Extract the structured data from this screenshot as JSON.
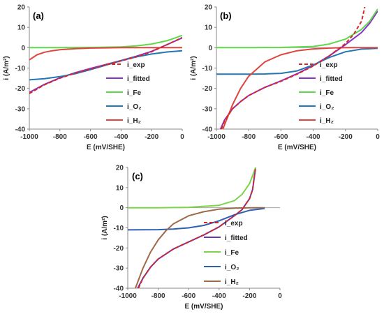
{
  "chart_data": [
    {
      "type": "line",
      "panel_label": "(a)",
      "xlabel": "E (mV/SHE)",
      "ylabel": "i (A/m²)",
      "xlim": [
        -1000,
        0
      ],
      "ylim": [
        -40,
        20
      ],
      "x_ticks": [
        -1000,
        -800,
        -600,
        -400,
        -200,
        0
      ],
      "y_ticks": [
        -40,
        -30,
        -20,
        -10,
        0,
        10,
        20
      ],
      "grid": false,
      "legend_position": "right",
      "series": [
        {
          "name": "i_exp",
          "color": "#d62728",
          "dashed": true,
          "x": [
            -1000,
            -900,
            -800,
            -700,
            -600,
            -500,
            -400,
            -300,
            -200,
            -100,
            0
          ],
          "y": [
            -22.5,
            -18.2,
            -15,
            -12.5,
            -10.5,
            -8.5,
            -6.5,
            -4.5,
            -2,
            1.5,
            5
          ]
        },
        {
          "name": "i_fitted",
          "color": "#8b2fc9",
          "dashed": false,
          "x": [
            -1000,
            -900,
            -800,
            -700,
            -600,
            -500,
            -400,
            -300,
            -200,
            -100,
            0
          ],
          "y": [
            -22,
            -18,
            -14.8,
            -12.3,
            -10.2,
            -8.3,
            -6.3,
            -4.2,
            -1.8,
            1.5,
            4.8
          ]
        },
        {
          "name": "i_Fe",
          "color": "#5ed94a",
          "dashed": false,
          "x": [
            -1000,
            -800,
            -600,
            -400,
            -300,
            -200,
            -100,
            0
          ],
          "y": [
            0,
            0,
            0.1,
            0.4,
            0.9,
            1.8,
            3.4,
            6
          ]
        },
        {
          "name": "i_O₂",
          "color": "#2376b5",
          "dashed": false,
          "x": [
            -1000,
            -900,
            -800,
            -700,
            -600,
            -500,
            -400,
            -300,
            -200,
            -100,
            0
          ],
          "y": [
            -15.8,
            -15.2,
            -14.2,
            -12.8,
            -10.8,
            -8.6,
            -6.4,
            -4.5,
            -3.1,
            -2.1,
            -1.5
          ]
        },
        {
          "name": "i_H₂",
          "color": "#e0443f",
          "dashed": false,
          "x": [
            -1000,
            -950,
            -900,
            -850,
            -800,
            -700,
            -600,
            -500,
            -400,
            -200,
            0
          ],
          "y": [
            -6,
            -3.5,
            -2.2,
            -1.5,
            -1,
            -0.5,
            -0.2,
            -0.1,
            0,
            0,
            0
          ]
        }
      ]
    },
    {
      "type": "line",
      "panel_label": "(b)",
      "xlabel": "E (mV/SHE)",
      "ylabel": "i (A/m²)",
      "xlim": [
        -1000,
        0
      ],
      "ylim": [
        -40,
        20
      ],
      "x_ticks": [
        -1000,
        -800,
        -600,
        -400,
        -200,
        0
      ],
      "y_ticks": [
        -40,
        -30,
        -20,
        -10,
        0,
        10,
        20
      ],
      "grid": false,
      "legend_position": "right",
      "series": [
        {
          "name": "i_exp",
          "color": "#d62728",
          "dashed": true,
          "x": [
            -970,
            -950,
            -900,
            -850,
            -800,
            -700,
            -600,
            -500,
            -400,
            -300,
            -200,
            -150,
            -100,
            -80
          ],
          "y": [
            -40,
            -36,
            -30,
            -26.5,
            -23.5,
            -19.5,
            -16.5,
            -13,
            -9,
            -4,
            2,
            6.5,
            13,
            20
          ]
        },
        {
          "name": "i_fitted",
          "color": "#8b2fc9",
          "dashed": false,
          "x": [
            -975,
            -950,
            -900,
            -850,
            -800,
            -700,
            -600,
            -500,
            -400,
            -300,
            -200,
            -100,
            -50,
            0
          ],
          "y": [
            -40,
            -35.5,
            -30,
            -26.5,
            -23.5,
            -19.5,
            -16.3,
            -12.8,
            -8.8,
            -4,
            1.5,
            7.5,
            12,
            18
          ]
        },
        {
          "name": "i_Fe",
          "color": "#5ed94a",
          "dashed": false,
          "x": [
            -1000,
            -800,
            -600,
            -400,
            -300,
            -200,
            -100,
            -50,
            0
          ],
          "y": [
            0,
            0,
            0.1,
            0.6,
            1.8,
            4.2,
            9,
            13,
            19
          ]
        },
        {
          "name": "i_O₂",
          "color": "#2376b5",
          "dashed": false,
          "x": [
            -1000,
            -800,
            -700,
            -600,
            -500,
            -400,
            -300,
            -200,
            -100,
            0
          ],
          "y": [
            -13,
            -13,
            -12.9,
            -12.6,
            -11.4,
            -8.5,
            -4.8,
            -2,
            -0.7,
            -0.3
          ]
        },
        {
          "name": "i_H₂",
          "color": "#e0443f",
          "dashed": false,
          "x": [
            -960,
            -900,
            -850,
            -800,
            -700,
            -600,
            -500,
            -400,
            -300,
            -200,
            0
          ],
          "y": [
            -40,
            -28,
            -20,
            -14,
            -7,
            -3.5,
            -1.5,
            -0.6,
            -0.2,
            0,
            0
          ]
        }
      ]
    },
    {
      "type": "line",
      "panel_label": "(c)",
      "xlabel": "E (mV/SHE)",
      "ylabel": "i (A/m²)",
      "xlim": [
        -1000,
        0
      ],
      "ylim": [
        -40,
        20
      ],
      "x_ticks": [
        -1000,
        -800,
        -600,
        -400,
        -200,
        0
      ],
      "y_ticks": [
        -40,
        -30,
        -20,
        -10,
        0,
        10,
        20
      ],
      "grid": false,
      "legend_position": "right",
      "series": [
        {
          "name": "i_exp",
          "color": "#d62728",
          "dashed": true,
          "x": [
            -930,
            -900,
            -850,
            -800,
            -700,
            -600,
            -500,
            -400,
            -300,
            -250,
            -200,
            -180,
            -160
          ],
          "y": [
            -40,
            -35,
            -29.5,
            -25.5,
            -20.5,
            -17,
            -13.5,
            -9.5,
            -4,
            -1,
            4.5,
            9,
            20
          ]
        },
        {
          "name": "i_fitted",
          "color": "#6a35b3",
          "dashed": false,
          "x": [
            -935,
            -900,
            -850,
            -800,
            -700,
            -600,
            -500,
            -400,
            -300,
            -250,
            -200,
            -180,
            -160
          ],
          "y": [
            -40,
            -35,
            -29.5,
            -25.5,
            -20.5,
            -17,
            -13.5,
            -9.5,
            -4,
            -1,
            4.5,
            9,
            20
          ]
        },
        {
          "name": "i_Fe",
          "color": "#7ed34a",
          "dashed": false,
          "x": [
            -1000,
            -800,
            -600,
            -400,
            -300,
            -250,
            -200,
            -180,
            -160
          ],
          "y": [
            0,
            0,
            0.2,
            1.2,
            3.5,
            6.5,
            12,
            16,
            20
          ]
        },
        {
          "name": "i_O₂",
          "color": "#2f5fb2",
          "dashed": false,
          "x": [
            -1000,
            -800,
            -700,
            -600,
            -500,
            -400,
            -300,
            -200,
            -100
          ],
          "y": [
            -11,
            -10.9,
            -10.6,
            -10,
            -8.8,
            -6.5,
            -3.5,
            -1.3,
            -0.4
          ]
        },
        {
          "name": "i_H₂",
          "color": "#9c6a4a",
          "dashed": false,
          "x": [
            -950,
            -900,
            -850,
            -800,
            -750,
            -700,
            -600,
            -500,
            -400,
            -300,
            -200,
            -100
          ],
          "y": [
            -40,
            -30,
            -22,
            -16,
            -11.5,
            -8,
            -4,
            -2,
            -0.7,
            -0.2,
            0,
            0
          ]
        }
      ]
    }
  ]
}
